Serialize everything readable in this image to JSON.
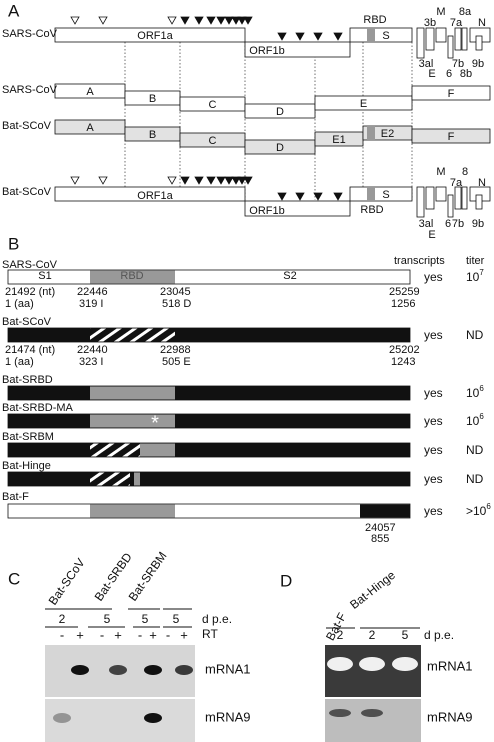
{
  "panels": {
    "a": "A",
    "b": "B",
    "c": "C",
    "d": "D"
  },
  "panel_a": {
    "sars_genome": {
      "label": "SARS-CoV",
      "orf1a": "ORF1a",
      "orf1b": "ORF1b",
      "rbd": "RBD",
      "s": "S",
      "orfs_top": [
        "3b",
        "M",
        "7a",
        "8a",
        "N"
      ],
      "orfs_bottom": [
        "3al",
        "E",
        "6",
        "7b",
        "8b",
        "9b"
      ]
    },
    "sars_fragments": {
      "label": "SARS-CoV",
      "fragments": [
        "A",
        "B",
        "C",
        "D",
        "E",
        "F"
      ]
    },
    "bat_fragments": {
      "label": "Bat-SCoV",
      "fragments": [
        "A",
        "B",
        "C",
        "D",
        "E1",
        "E2",
        "F"
      ]
    },
    "bat_genome": {
      "label": "Bat-SCoV",
      "orf1a": "ORF1a",
      "orf1b": "ORF1b",
      "rbd": "RBD",
      "s": "S",
      "orfs_top": [
        "M",
        "8",
        "7a",
        "N"
      ],
      "orfs_bottom": [
        "3al",
        "E",
        "6",
        "7b",
        "9b"
      ]
    }
  },
  "panel_b": {
    "headers": [
      "transcripts",
      "titer"
    ],
    "domains": [
      "S1",
      "RBD",
      "S2"
    ],
    "constructs": [
      {
        "name": "SARS-CoV",
        "nt": [
          "21492 (nt)",
          "22446",
          "23045",
          "25259"
        ],
        "aa": [
          "1 (aa)",
          "319 I",
          "518 D",
          "1256"
        ],
        "transcripts": "yes",
        "titer": {
          "base": "10",
          "exp": "7"
        }
      },
      {
        "name": "Bat-SCoV",
        "nt": [
          "21474 (nt)",
          "22440",
          "22988",
          "25202"
        ],
        "aa": [
          "1 (aa)",
          "323 I",
          "505 E",
          "1243"
        ],
        "transcripts": "yes",
        "titer": "ND"
      },
      {
        "name": "Bat-SRBD",
        "transcripts": "yes",
        "titer": {
          "base": "10",
          "exp": "6"
        }
      },
      {
        "name": "Bat-SRBD-MA",
        "marker": "*",
        "transcripts": "yes",
        "titer": {
          "base": "10",
          "exp": "6"
        }
      },
      {
        "name": "Bat-SRBM",
        "transcripts": "yes",
        "titer": "ND"
      },
      {
        "name": "Bat-Hinge",
        "transcripts": "yes",
        "titer": "ND"
      },
      {
        "name": "Bat-F",
        "nt": [
          "24057"
        ],
        "aa": [
          "855"
        ],
        "transcripts": "yes",
        "titer": {
          "base": ">10",
          "exp": "6"
        }
      }
    ]
  },
  "panel_c": {
    "samples": [
      "Bat-SCoV",
      "Bat-SRBD",
      "Bat-SRBM"
    ],
    "days": [
      "2",
      "5",
      "5",
      "5"
    ],
    "days_label": "d p.e.",
    "rt": [
      "-",
      "+",
      "-",
      "+",
      "-",
      "+",
      "-",
      "+"
    ],
    "rt_label": "RT",
    "blots": [
      "mRNA1",
      "mRNA9"
    ]
  },
  "panel_d": {
    "samples": [
      "Bat-F",
      "Bat-Hinge"
    ],
    "days": [
      "2",
      "2",
      "5"
    ],
    "days_label": "d p.e.",
    "blots": [
      "mRNA1",
      "mRNA9"
    ]
  }
}
